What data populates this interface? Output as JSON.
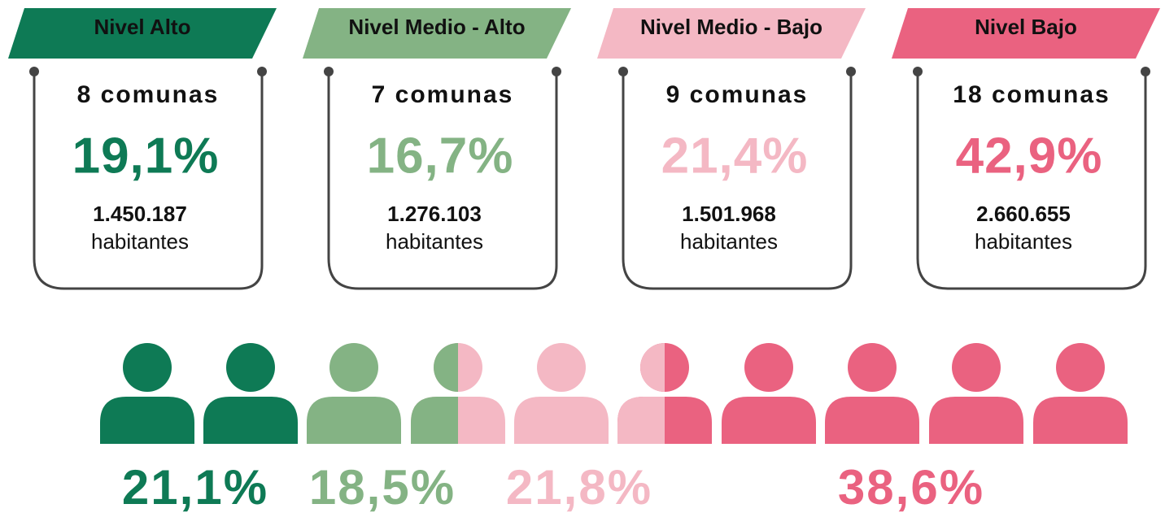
{
  "cards": [
    {
      "level": "Nivel Alto",
      "communes": "8 comunas",
      "percent": "19,1%",
      "population": "1.450.187",
      "unit": "habitantes"
    },
    {
      "level": "Nivel Medio - Alto",
      "communes": "7 comunas",
      "percent": "16,7%",
      "population": "1.276.103",
      "unit": "habitantes"
    },
    {
      "level": "Nivel Medio - Bajo",
      "communes": "9 comunas",
      "percent": "21,4%",
      "population": "1.501.968",
      "unit": "habitantes"
    },
    {
      "level": "Nivel Bajo",
      "communes": "18 comunas",
      "percent": "42,9%",
      "population": "2.660.655",
      "unit": "habitantes"
    }
  ],
  "distribution": [
    "21,1%",
    "18,5%",
    "21,8%",
    "38,6%"
  ]
}
